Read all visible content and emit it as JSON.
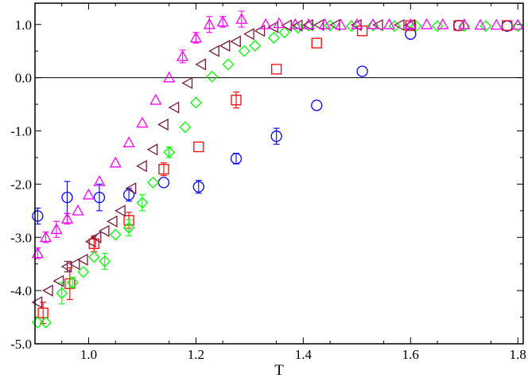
{
  "chart_data": {
    "type": "scatter",
    "xlabel": "T",
    "ylabel": "",
    "xlim": [
      0.9,
      1.81
    ],
    "ylim": [
      -5.0,
      1.4
    ],
    "xticks": [
      1.0,
      1.2,
      1.4,
      1.6,
      1.8
    ],
    "xtick_labels": [
      "1.0",
      "1.2",
      "1.4",
      "1.6",
      "1.8"
    ],
    "yticks": [
      -5.0,
      -4.0,
      -3.0,
      -2.0,
      -1.0,
      0.0,
      1.0
    ],
    "ytick_labels": [
      "-5.0",
      "-4.0",
      "-3.0",
      "-2.0",
      "-1.0",
      "0.0",
      "1.0"
    ],
    "reference_line_y": 0.0,
    "series": [
      {
        "marker": "circle",
        "color": "#0000ff",
        "points": [
          [
            0.905,
            -2.6,
            0.15
          ],
          [
            0.96,
            -2.25,
            0.3
          ],
          [
            1.02,
            -2.25,
            0.25
          ],
          [
            1.075,
            -2.2,
            0.12
          ],
          [
            1.14,
            -1.97,
            0.07
          ],
          [
            1.205,
            -2.05,
            0.12
          ],
          [
            1.275,
            -1.52,
            0.1
          ],
          [
            1.35,
            -1.1,
            0.15
          ],
          [
            1.425,
            -0.52,
            0.08
          ],
          [
            1.51,
            0.12,
            0.08
          ],
          [
            1.6,
            0.82,
            0.08
          ],
          [
            1.69,
            0.98,
            0.04
          ],
          [
            1.78,
            0.97,
            0.03
          ]
        ]
      },
      {
        "marker": "square",
        "color": "#ff0000",
        "points": [
          [
            0.915,
            -4.42,
            0.2
          ],
          [
            0.965,
            -3.87,
            0.3
          ],
          [
            1.01,
            -3.12,
            0.15
          ],
          [
            1.075,
            -2.68,
            0.15
          ],
          [
            1.14,
            -1.72,
            0.12
          ],
          [
            1.205,
            -1.3,
            0.04
          ],
          [
            1.275,
            -0.42,
            0.15
          ],
          [
            1.35,
            0.16,
            0.05
          ],
          [
            1.425,
            0.65,
            0.05
          ],
          [
            1.51,
            0.88,
            0.05
          ],
          [
            1.6,
            0.98,
            0.03
          ],
          [
            1.69,
            0.98,
            0.02
          ],
          [
            1.78,
            0.98,
            0.02
          ]
        ]
      },
      {
        "marker": "diamond",
        "color": "#00ff00",
        "points": [
          [
            0.905,
            -4.6,
            0.05
          ],
          [
            0.92,
            -4.6,
            0.05
          ],
          [
            0.95,
            -4.05,
            0.2
          ],
          [
            0.97,
            -3.85,
            0.1
          ],
          [
            0.99,
            -3.65,
            0.05
          ],
          [
            1.01,
            -3.37,
            0.08
          ],
          [
            1.03,
            -3.45,
            0.15
          ],
          [
            1.05,
            -2.95,
            0.05
          ],
          [
            1.075,
            -2.82,
            0.15
          ],
          [
            1.1,
            -2.35,
            0.15
          ],
          [
            1.12,
            -1.97,
            0.05
          ],
          [
            1.15,
            -1.4,
            0.1
          ],
          [
            1.18,
            -0.93,
            0.05
          ],
          [
            1.2,
            -0.47,
            0.05
          ],
          [
            1.23,
            0.02,
            0.05
          ],
          [
            1.26,
            0.25,
            0.05
          ],
          [
            1.29,
            0.5,
            0.05
          ],
          [
            1.31,
            0.6,
            0.05
          ],
          [
            1.345,
            0.75,
            0.05
          ],
          [
            1.365,
            0.85,
            0.05
          ],
          [
            1.39,
            0.94,
            0.05
          ],
          [
            1.41,
            0.98,
            0.05
          ],
          [
            1.45,
            0.98,
            0.03
          ],
          [
            1.49,
            0.97,
            0.03
          ],
          [
            1.53,
            0.98,
            0.03
          ],
          [
            1.57,
            0.97,
            0.03
          ],
          [
            1.61,
            0.97,
            0.03
          ],
          [
            1.65,
            0.97,
            0.03
          ],
          [
            1.7,
            0.97,
            0.03
          ],
          [
            1.74,
            0.97,
            0.03
          ],
          [
            1.8,
            0.97,
            0.03
          ]
        ]
      },
      {
        "marker": "triangle-left",
        "color": "#7a1a3a",
        "points": [
          [
            0.905,
            -4.22,
            0.05
          ],
          [
            0.925,
            -4.0,
            0.05
          ],
          [
            0.945,
            -3.82,
            0.05
          ],
          [
            0.96,
            -3.55,
            0.1
          ],
          [
            0.975,
            -3.5,
            0.05
          ],
          [
            0.99,
            -3.42,
            0.05
          ],
          [
            1.005,
            -3.08,
            0.05
          ],
          [
            1.015,
            -3.0,
            0.05
          ],
          [
            1.03,
            -2.88,
            0.05
          ],
          [
            1.045,
            -2.7,
            0.05
          ],
          [
            1.06,
            -2.5,
            0.05
          ],
          [
            1.08,
            -2.08,
            0.05
          ],
          [
            1.1,
            -1.66,
            0.05
          ],
          [
            1.12,
            -1.35,
            0.05
          ],
          [
            1.14,
            -0.88,
            0.05
          ],
          [
            1.16,
            -0.56,
            0.05
          ],
          [
            1.185,
            -0.1,
            0.05
          ],
          [
            1.21,
            0.25,
            0.05
          ],
          [
            1.235,
            0.5,
            0.05
          ],
          [
            1.255,
            0.6,
            0.05
          ],
          [
            1.275,
            0.68,
            0.05
          ],
          [
            1.3,
            0.82,
            0.05
          ],
          [
            1.32,
            0.88,
            0.05
          ],
          [
            1.345,
            0.95,
            0.05
          ],
          [
            1.37,
            0.98,
            0.05
          ],
          [
            1.39,
            0.98,
            0.05
          ],
          [
            1.41,
            0.99,
            0.05
          ],
          [
            1.43,
            0.99,
            0.05
          ],
          [
            1.46,
            0.99,
            0.03
          ],
          [
            1.5,
            0.99,
            0.03
          ],
          [
            1.54,
            0.99,
            0.03
          ],
          [
            1.58,
            0.99,
            0.03
          ],
          [
            1.6,
            0.99,
            0.03
          ]
        ]
      },
      {
        "marker": "triangle-up",
        "color": "#ff00ff",
        "points": [
          [
            0.905,
            -3.3,
            0.1
          ],
          [
            0.92,
            -3.0,
            0.1
          ],
          [
            0.94,
            -2.85,
            0.15
          ],
          [
            0.96,
            -2.65,
            0.1
          ],
          [
            0.98,
            -2.5,
            0.05
          ],
          [
            1.0,
            -2.2,
            0.05
          ],
          [
            1.02,
            -1.95,
            0.05
          ],
          [
            1.05,
            -1.6,
            0.05
          ],
          [
            1.075,
            -1.22,
            0.08
          ],
          [
            1.1,
            -0.85,
            0.08
          ],
          [
            1.125,
            -0.42,
            0.05
          ],
          [
            1.15,
            0.0,
            0.05
          ],
          [
            1.175,
            0.4,
            0.12
          ],
          [
            1.2,
            0.75,
            0.1
          ],
          [
            1.225,
            1.0,
            0.15
          ],
          [
            1.25,
            1.05,
            0.1
          ],
          [
            1.285,
            1.1,
            0.15
          ],
          [
            1.33,
            1.0,
            0.05
          ],
          [
            1.355,
            1.02,
            0.05
          ],
          [
            1.385,
            1.0,
            0.05
          ],
          [
            1.41,
            1.0,
            0.05
          ],
          [
            1.44,
            1.0,
            0.05
          ],
          [
            1.47,
            0.99,
            0.05
          ],
          [
            1.5,
            1.0,
            0.05
          ],
          [
            1.53,
            1.0,
            0.05
          ],
          [
            1.56,
            1.0,
            0.05
          ],
          [
            1.6,
            1.0,
            0.05
          ],
          [
            1.63,
            1.0,
            0.05
          ],
          [
            1.66,
            1.0,
            0.05
          ],
          [
            1.7,
            1.0,
            0.05
          ],
          [
            1.73,
            0.99,
            0.05
          ],
          [
            1.76,
            0.99,
            0.05
          ],
          [
            1.8,
            0.99,
            0.05
          ]
        ]
      }
    ]
  }
}
